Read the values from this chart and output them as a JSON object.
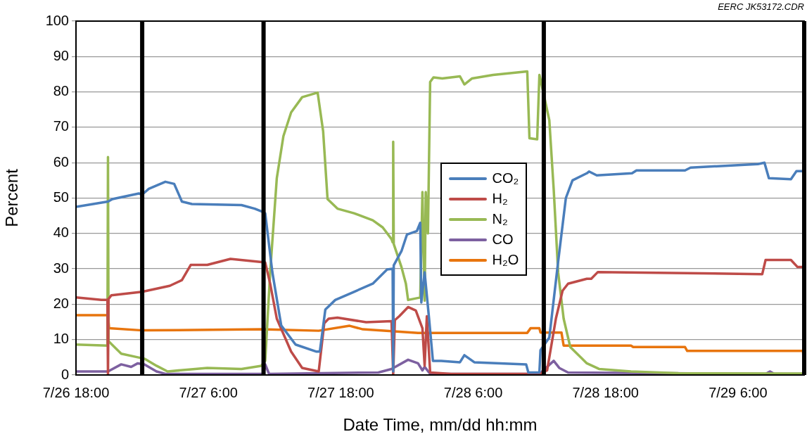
{
  "chart_data": {
    "type": "line",
    "xlabel": "Date Time, mm/dd hh:mm",
    "ylabel": "Percent",
    "annotations": [
      "EERC JK53172.CDR"
    ],
    "xlim": [
      "--07-26T18:00",
      "--07-29T12:00"
    ],
    "xticks": [
      {
        "value": "--07-26T18:00",
        "label": "7/26 18:00"
      },
      {
        "value": "--07-27T06:00",
        "label": "7/27 6:00"
      },
      {
        "value": "--07-27T18:00",
        "label": "7/27 18:00"
      },
      {
        "value": "--07-28T06:00",
        "label": "7/28 6:00"
      },
      {
        "value": "--07-28T18:00",
        "label": "7/28 18:00"
      },
      {
        "value": "--07-29T06:00",
        "label": "7/29 6:00"
      }
    ],
    "ylim": [
      0,
      100
    ],
    "yticks": [
      0,
      10,
      20,
      30,
      40,
      50,
      60,
      70,
      80,
      90,
      100
    ],
    "grid": "y",
    "legend": "center",
    "marker": "none",
    "line_style": "solid",
    "ref_lines": [
      {
        "axis": "x",
        "value": "--07-27T00:00",
        "color": "#000000"
      },
      {
        "axis": "x",
        "value": "--07-27T11:00",
        "color": "#000000"
      },
      {
        "axis": "x",
        "value": "--07-28T12:24",
        "color": "#000000"
      },
      {
        "axis": "x",
        "value": "--07-29T12:00",
        "color": "#000000"
      }
    ],
    "series": [
      {
        "name": "CO₂",
        "color": "#4a7ebb",
        "x": [
          "--07-26T18:00",
          "--07-26T20:54",
          "--07-26T21:18",
          "--07-26T23:42",
          "--07-27T00:00",
          "--07-27T00:36",
          "--07-27T02:06",
          "--07-27T02:54",
          "--07-27T03:36",
          "--07-27T04:30",
          "--07-27T09:00",
          "--07-27T10:12",
          "--07-27T11:00",
          "--07-27T11:09",
          "--07-27T11:48",
          "--07-27T12:36",
          "--07-27T13:54",
          "--07-27T15:48",
          "--07-27T16:06",
          "--07-27T16:36",
          "--07-27T17:30",
          "--07-27T19:12",
          "--07-27T20:54",
          "--07-27T22:12",
          "--07-27T22:42",
          "--07-27T22:45",
          "--07-27T22:48",
          "--07-27T23:30",
          "--07-28T00:00",
          "--07-28T00:54",
          "--07-28T01:12",
          "--07-28T01:18",
          "--07-28T01:36",
          "--07-28T02:00",
          "--07-28T02:21",
          "--07-28T03:06",
          "--07-28T04:48",
          "--07-28T05:12",
          "--07-28T06:06",
          "--07-28T10:48",
          "--07-28T11:00",
          "--07-28T12:00",
          "--07-28T12:06",
          "--07-28T12:54",
          "--07-28T13:42",
          "--07-28T14:24",
          "--07-28T15:00",
          "--07-28T16:18",
          "--07-28T16:30",
          "--07-28T17:12",
          "--07-28T20:24",
          "--07-28T20:48",
          "--07-29T01:12",
          "--07-29T01:42",
          "--07-29T07:48",
          "--07-29T08:24",
          "--07-29T08:48",
          "--07-29T10:48",
          "--07-29T11:18",
          "--07-29T11:48"
        ],
        "values": [
          47.5,
          49,
          49.7,
          51.3,
          51,
          52.6,
          54.6,
          54,
          49,
          48.3,
          48,
          47,
          46,
          45.7,
          29,
          14,
          8.6,
          6.6,
          6.6,
          18.5,
          21.2,
          23.5,
          25.8,
          29.8,
          30,
          1,
          31,
          35,
          39.7,
          40.7,
          43,
          20.5,
          29,
          16,
          4,
          4,
          3.6,
          5.6,
          3.6,
          3,
          0.7,
          0.7,
          7,
          10.6,
          32,
          50,
          55,
          57,
          57.5,
          56.4,
          57,
          57.8,
          57.8,
          58.6,
          59.6,
          60,
          55.6,
          55.3,
          57.6,
          57.6
        ]
      },
      {
        "name": "H₂",
        "color": "#be4b48",
        "x": [
          "--07-26T18:00",
          "--07-26T20:18",
          "--07-26T20:51",
          "--07-26T20:54",
          "--07-26T20:57",
          "--07-26T21:12",
          "--07-27T00:00",
          "--07-27T02:30",
          "--07-27T03:36",
          "--07-27T04:24",
          "--07-27T05:54",
          "--07-27T08:00",
          "--07-27T10:12",
          "--07-27T11:09",
          "--07-27T11:36",
          "--07-27T12:12",
          "--07-27T13:30",
          "--07-27T14:30",
          "--07-27T16:00",
          "--07-27T16:30",
          "--07-27T16:54",
          "--07-27T17:42",
          "--07-27T20:18",
          "--07-27T22:36",
          "--07-27T22:45",
          "--07-27T22:54",
          "--07-27T23:18",
          "--07-28T00:06",
          "--07-28T00:48",
          "--07-28T01:24",
          "--07-28T01:36",
          "--07-28T01:48",
          "--07-28T02:06",
          "--07-28T04:00",
          "--07-28T12:00",
          "--07-28T12:42",
          "--07-28T13:30",
          "--07-28T14:06",
          "--07-28T14:36",
          "--07-28T16:18",
          "--07-28T16:42",
          "--07-28T17:18",
          "--07-29T08:12",
          "--07-29T08:30",
          "--07-29T10:48",
          "--07-29T11:24",
          "--07-29T11:48"
        ],
        "values": [
          21.9,
          21.2,
          21.2,
          0,
          21.5,
          22.5,
          23.5,
          25.2,
          26.8,
          31.1,
          31.1,
          32.8,
          32.1,
          31.8,
          25.8,
          15.9,
          6.6,
          2,
          1,
          14.6,
          15.9,
          16.2,
          14.9,
          15.2,
          0,
          15.5,
          16.6,
          19.2,
          18.2,
          13.2,
          2.6,
          16.6,
          0.7,
          0.3,
          0.3,
          1.3,
          16,
          23.8,
          25.8,
          27.2,
          27.2,
          29.1,
          28.5,
          32.5,
          32.5,
          30.5,
          30.5
        ]
      },
      {
        "name": "N₂",
        "color": "#98b954",
        "x": [
          "--07-26T18:00",
          "--07-26T20:51",
          "--07-26T20:54",
          "--07-26T20:57",
          "--07-26T21:00",
          "--07-26T22:06",
          "--07-26T23:36",
          "--07-27T00:12",
          "--07-27T01:18",
          "--07-27T02:18",
          "--07-27T05:54",
          "--07-27T09:00",
          "--07-27T10:48",
          "--07-27T11:09",
          "--07-27T11:36",
          "--07-27T12:12",
          "--07-27T12:48",
          "--07-27T13:30",
          "--07-27T14:30",
          "--07-27T15:54",
          "--07-27T16:24",
          "--07-27T16:48",
          "--07-27T17:42",
          "--07-27T19:12",
          "--07-27T20:54",
          "--07-27T21:48",
          "--07-27T22:36",
          "--07-27T22:42",
          "--07-27T22:45",
          "--07-27T22:48",
          "--07-27T23:30",
          "--07-27T23:54",
          "--07-28T00:06",
          "--07-28T01:12",
          "--07-28T01:24",
          "--07-28T01:36",
          "--07-28T01:42",
          "--07-28T01:54",
          "--07-28T02:06",
          "--07-28T02:24",
          "--07-28T03:12",
          "--07-28T04:48",
          "--07-28T05:12",
          "--07-28T05:54",
          "--07-28T07:48",
          "--07-28T10:54",
          "--07-28T11:06",
          "--07-28T11:48",
          "--07-28T12:00",
          "--07-28T12:06",
          "--07-28T12:54",
          "--07-28T13:18",
          "--07-28T13:42",
          "--07-28T14:12",
          "--07-28T14:48",
          "--07-28T16:18",
          "--07-28T17:12",
          "--07-28T17:24",
          "--07-28T20:18",
          "--07-29T00:36",
          "--07-29T12:00"
        ],
        "values": [
          8.6,
          8.3,
          61.6,
          9.6,
          9.4,
          6,
          5,
          4.6,
          2.6,
          1,
          2,
          1.7,
          2.6,
          4,
          29,
          55.6,
          67.5,
          74.2,
          78.5,
          79.8,
          68.9,
          49.7,
          47,
          45.7,
          43.7,
          41.7,
          38.4,
          37.5,
          65.9,
          37,
          30.5,
          25.8,
          21.2,
          21.9,
          51.7,
          21,
          51.7,
          40,
          82.8,
          84.1,
          83.8,
          84.4,
          82.1,
          83.8,
          84.8,
          85.8,
          66.9,
          66.6,
          84.8,
          83.5,
          72,
          52.3,
          29,
          15.9,
          7.9,
          3.3,
          2,
          1.7,
          1,
          0.5,
          0.4
        ]
      },
      {
        "name": "CO",
        "color": "#7d60a0",
        "x": [
          "--07-26T18:00",
          "--07-26T20:54",
          "--07-26T22:06",
          "--07-26T23:00",
          "--07-26T23:36",
          "--07-27T00:12",
          "--07-27T01:18",
          "--07-27T02:06",
          "--07-27T11:00",
          "--07-27T11:09",
          "--07-27T11:30",
          "--07-27T21:24",
          "--07-27T22:36",
          "--07-28T00:06",
          "--07-28T01:00",
          "--07-28T01:24",
          "--07-28T01:36",
          "--07-28T02:06",
          "--07-28T12:00",
          "--07-28T13:18",
          "--07-28T13:48",
          "--07-28T14:36",
          "--07-29T08:30",
          "--07-29T08:54",
          "--07-29T09:18",
          "--07-29T11:48"
        ],
        "values": [
          1,
          1,
          3,
          2.3,
          3.3,
          3,
          1,
          0.3,
          0.3,
          3,
          0.3,
          0.7,
          1.7,
          4.3,
          3.3,
          1.3,
          2.3,
          0.3,
          0.3,
          4,
          2,
          0.7,
          0.3,
          1,
          0.3,
          0.3
        ]
      },
      {
        "name": "H₂O",
        "color": "#e8750e",
        "x": [
          "--07-26T18:00",
          "--07-26T20:54",
          "--07-26T21:00",
          "--07-27T00:00",
          "--07-27T10:48",
          "--07-27T16:00",
          "--07-27T18:48",
          "--07-27T20:00",
          "--07-28T01:00",
          "--07-28T10:54",
          "--07-28T11:12",
          "--07-28T12:00",
          "--07-28T12:06",
          "--07-28T14:00",
          "--07-28T14:12",
          "--07-28T20:18",
          "--07-28T20:30",
          "--07-29T01:12",
          "--07-29T01:24",
          "--07-29T11:54",
          "--07-29T12:00"
        ],
        "values": [
          16.9,
          16.9,
          13.2,
          12.6,
          12.9,
          12.5,
          13.9,
          12.9,
          11.9,
          11.9,
          13.2,
          13.2,
          12,
          12,
          8.3,
          8.3,
          7.9,
          7.9,
          6.8,
          6.8,
          0.5
        ]
      }
    ]
  }
}
